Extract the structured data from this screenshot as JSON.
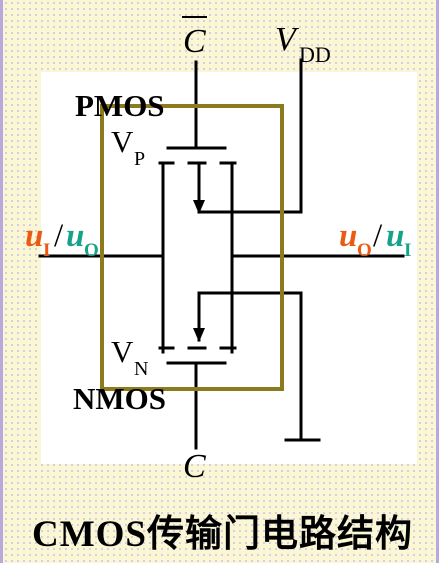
{
  "labels": {
    "c_bar": "C",
    "vdd_main": "V",
    "vdd_sub": "DD",
    "pmos": "PMOS",
    "vp_main": "V",
    "vp_sub": "P",
    "vn_main": "V",
    "vn_sub": "N",
    "nmos": "NMOS",
    "c": "C",
    "left_u1": "u",
    "left_u1_sub": "I",
    "left_slash": "/",
    "left_u2": "u",
    "left_u2_sub": "O",
    "right_u1": "u",
    "right_u1_sub": "O",
    "right_slash": "/",
    "right_u2": "u",
    "right_u2_sub": "I"
  },
  "caption": "CMOS传输门电路结构",
  "colors": {
    "background": "#fbf7d4",
    "panel": "#ffffff",
    "box": "#8b7a1e",
    "wire": "#000000",
    "orange": "#ea5a13",
    "teal": "#16a38a"
  }
}
